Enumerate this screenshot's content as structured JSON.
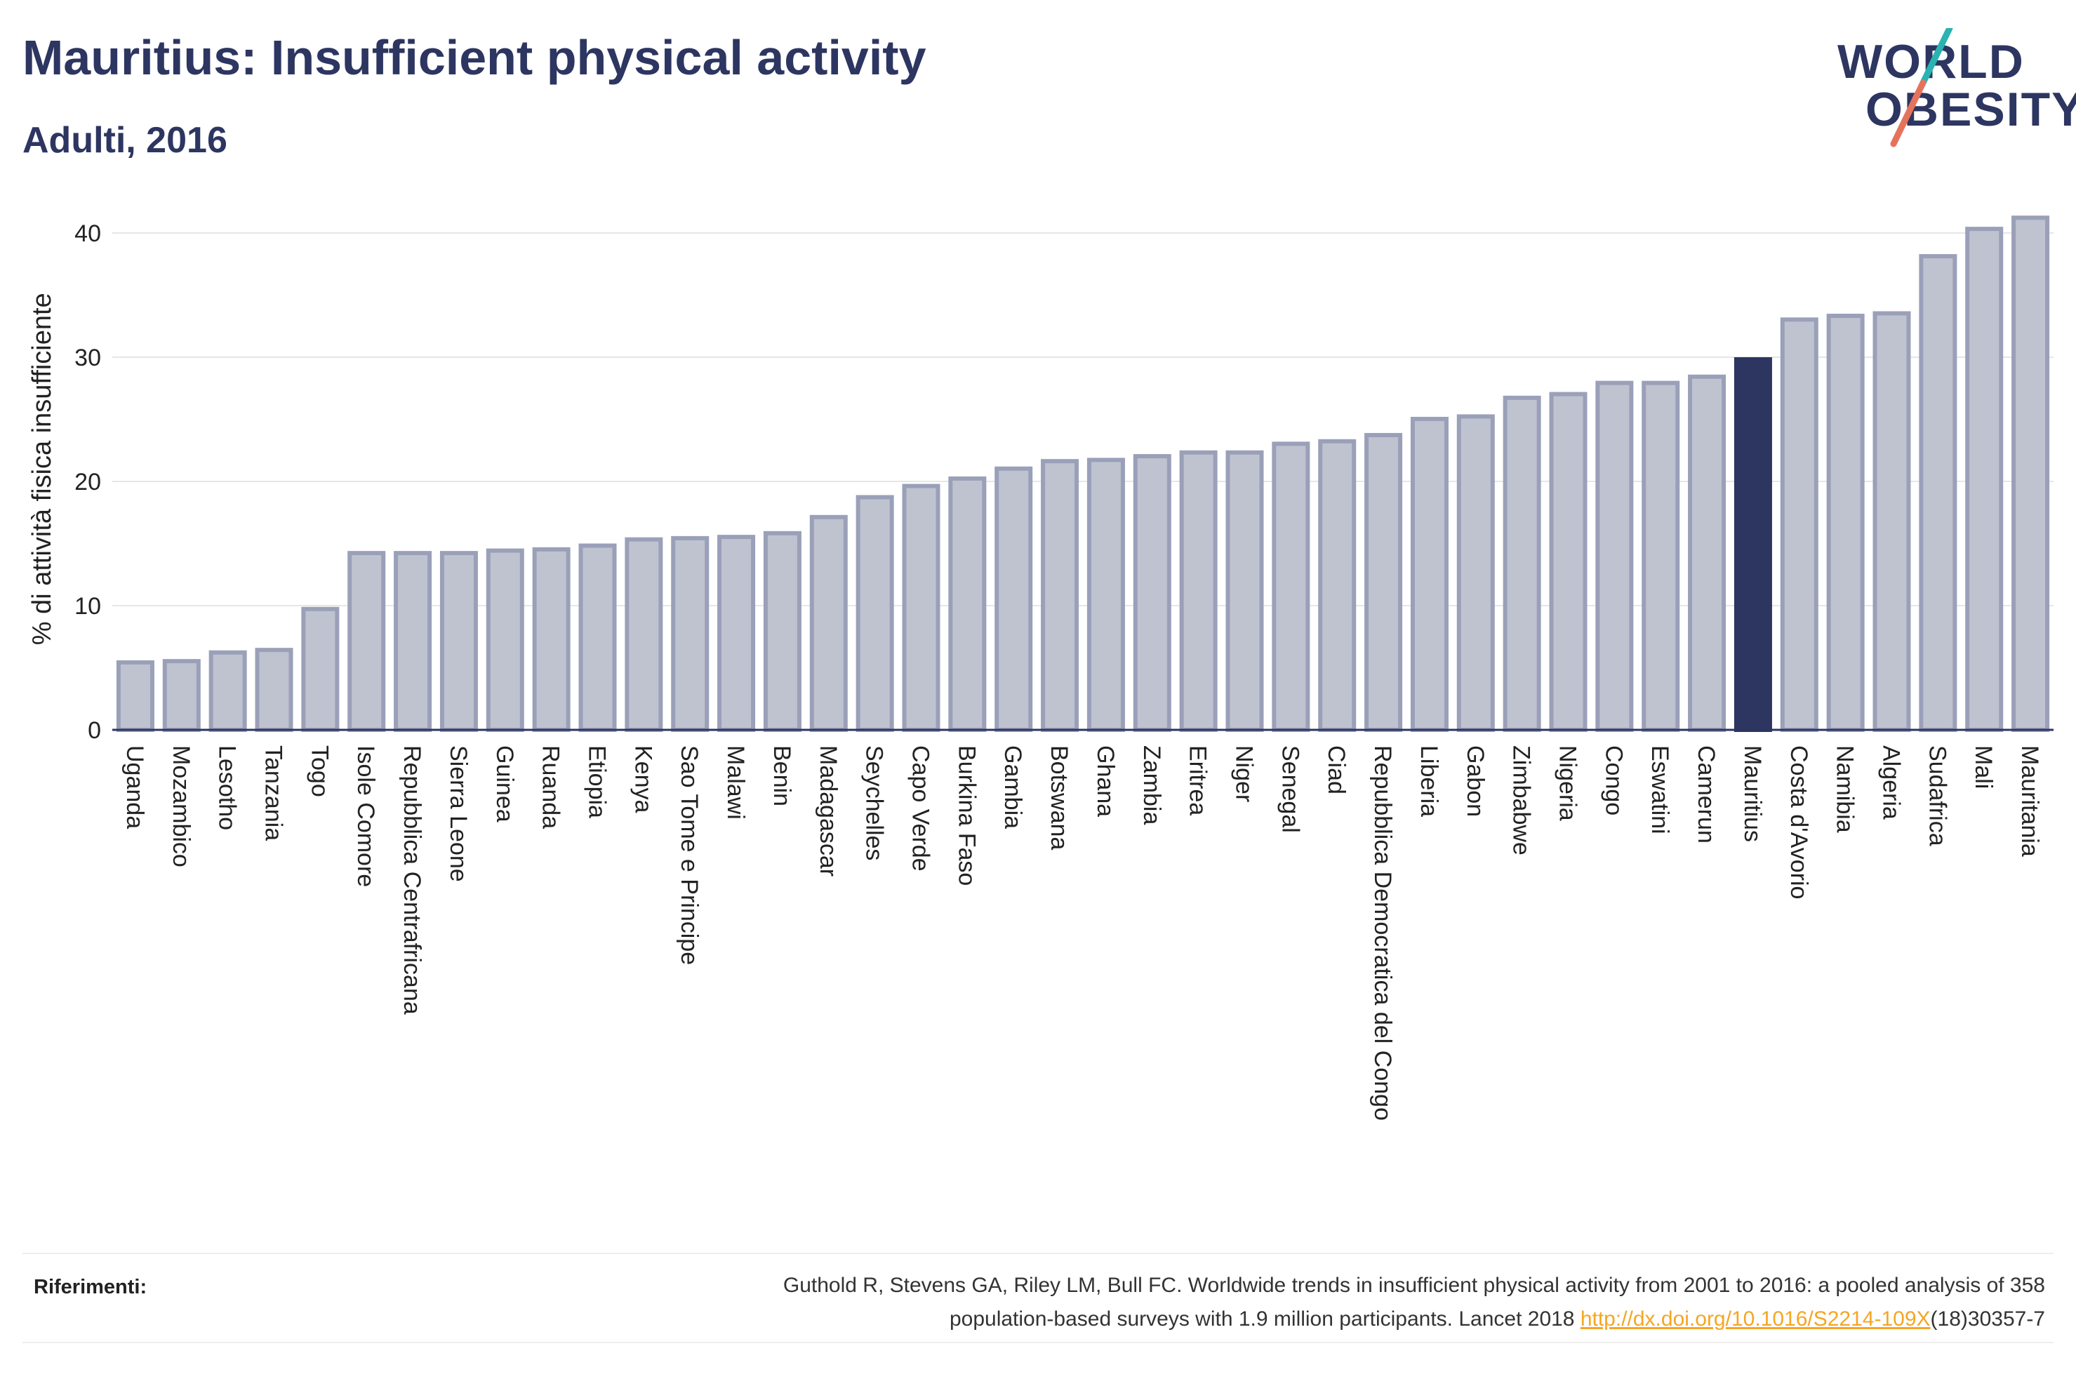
{
  "header": {
    "title": "Mauritius: Insufficient physical activity",
    "subtitle": "Adulti, 2016"
  },
  "logo": {
    "line1": "WORLD",
    "line2": "OBESITY",
    "icon": "world-obesity-logo"
  },
  "chart_data": {
    "type": "bar",
    "title": "Mauritius: Insufficient physical activity",
    "subtitle": "Adulti, 2016",
    "xlabel": "",
    "ylabel": "% di attività fisica insufficiente",
    "ylim": [
      0,
      42
    ],
    "yticks": [
      0,
      10,
      20,
      30,
      40
    ],
    "grid": true,
    "highlight": "Mauritius",
    "colors": {
      "bar": "#bfc3d0",
      "bar_border": "#9aa0b8",
      "highlight": "#2d3561",
      "grid": "#e6e6e6",
      "axis": "#2d3561"
    },
    "categories": [
      "Uganda",
      "Mozambico",
      "Lesotho",
      "Tanzania",
      "Togo",
      "Isole Comore",
      "Repubblica Centrafricana",
      "Sierra Leone",
      "Guinea",
      "Ruanda",
      "Etiopia",
      "Kenya",
      "Sao Tome e Principe",
      "Malawi",
      "Benin",
      "Madagascar",
      "Seychelles",
      "Capo Verde",
      "Burkina Faso",
      "Gambia",
      "Botswana",
      "Ghana",
      "Zambia",
      "Eritrea",
      "Niger",
      "Senegal",
      "Ciad",
      "Repubblica Democratica del Congo",
      "Liberia",
      "Gabon",
      "Zimbabwe",
      "Nigeria",
      "Congo",
      "Eswatini",
      "Camerun",
      "Mauritius",
      "Costa d'Avorio",
      "Namibia",
      "Algeria",
      "Sudafrica",
      "Mali",
      "Mauritania"
    ],
    "values": [
      5.6,
      5.7,
      6.4,
      6.6,
      9.9,
      14.4,
      14.4,
      14.4,
      14.6,
      14.7,
      15.0,
      15.5,
      15.6,
      15.7,
      16.0,
      17.3,
      18.9,
      19.8,
      20.4,
      21.2,
      21.8,
      21.9,
      22.2,
      22.5,
      22.5,
      23.2,
      23.4,
      23.9,
      25.2,
      25.4,
      26.9,
      27.2,
      28.1,
      28.1,
      28.6,
      30.0,
      33.2,
      33.5,
      33.7,
      38.3,
      40.5,
      41.4
    ]
  },
  "references": {
    "label": "Riferimenti:",
    "line1": "Guthold R, Stevens GA, Riley LM, Bull FC. Worldwide trends in insufficient physical activity from 2001 to 2016: a pooled analysis of 358",
    "line2_text": "population-based surveys with 1.9 million participants. Lancet 2018 ",
    "link": "http://dx.doi.org/10.1016/S2214-109X",
    "line2_suffix": "(18)30357-7"
  }
}
